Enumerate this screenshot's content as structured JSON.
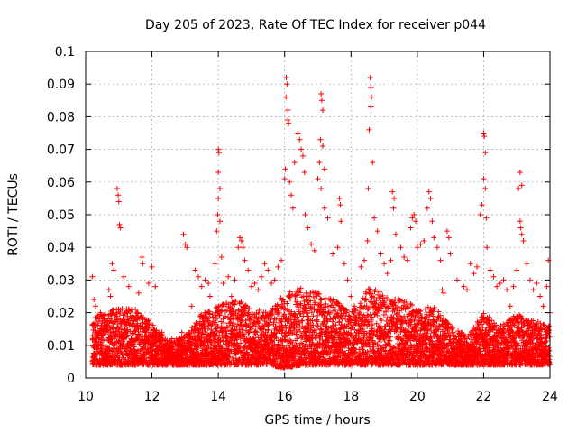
{
  "chart_data": {
    "type": "scatter",
    "title": "Day 205 of 2023, Rate Of TEC Index for receiver p044",
    "xlabel": "GPS time / hours",
    "ylabel": "ROTI / TECUs",
    "xlim": [
      10,
      24
    ],
    "ylim": [
      0,
      0.1
    ],
    "xticks": [
      10,
      12,
      14,
      16,
      18,
      20,
      22,
      24
    ],
    "yticks": [
      0,
      0.01,
      0.02,
      0.03,
      0.04,
      0.05,
      0.06,
      0.07,
      0.08,
      0.09,
      0.1
    ],
    "xtick_labels": [
      "10",
      "12",
      "14",
      "16",
      "18",
      "20",
      "22",
      "24"
    ],
    "ytick_labels": [
      "0",
      "0.01",
      "0.02",
      "0.03",
      "0.04",
      "0.05",
      "0.06",
      "0.07",
      "0.08",
      "0.09",
      "0.1"
    ],
    "grid": true,
    "marker": "plus",
    "color": "#ff0000",
    "legend": "none",
    "series": [
      {
        "points": [
          [
            10.2,
            0.031
          ],
          [
            10.25,
            0.024
          ],
          [
            10.3,
            0.022
          ],
          [
            10.35,
            0.018
          ],
          [
            10.45,
            0.02
          ],
          [
            10.55,
            0.016
          ],
          [
            10.7,
            0.027
          ],
          [
            10.75,
            0.025
          ],
          [
            10.8,
            0.035
          ],
          [
            10.85,
            0.033
          ],
          [
            10.95,
            0.058
          ],
          [
            10.98,
            0.056
          ],
          [
            11.0,
            0.054
          ],
          [
            11.02,
            0.047
          ],
          [
            11.05,
            0.046
          ],
          [
            11.15,
            0.031
          ],
          [
            11.3,
            0.028
          ],
          [
            11.5,
            0.021
          ],
          [
            11.6,
            0.026
          ],
          [
            11.7,
            0.037
          ],
          [
            11.72,
            0.035
          ],
          [
            11.9,
            0.029
          ],
          [
            12.0,
            0.034
          ],
          [
            12.1,
            0.028
          ],
          [
            12.3,
            0.014
          ],
          [
            12.6,
            0.012
          ],
          [
            12.9,
            0.014
          ],
          [
            12.95,
            0.044
          ],
          [
            13.0,
            0.041
          ],
          [
            13.05,
            0.04
          ],
          [
            13.2,
            0.022
          ],
          [
            13.3,
            0.033
          ],
          [
            13.4,
            0.031
          ],
          [
            13.5,
            0.028
          ],
          [
            13.6,
            0.03
          ],
          [
            13.7,
            0.029
          ],
          [
            13.75,
            0.025
          ],
          [
            13.9,
            0.035
          ],
          [
            13.95,
            0.045
          ],
          [
            14.0,
            0.07
          ],
          [
            14.02,
            0.069
          ],
          [
            14.0,
            0.063
          ],
          [
            14.05,
            0.058
          ],
          [
            14.0,
            0.055
          ],
          [
            13.98,
            0.05
          ],
          [
            14.05,
            0.048
          ],
          [
            14.1,
            0.037
          ],
          [
            14.15,
            0.029
          ],
          [
            14.3,
            0.031
          ],
          [
            14.4,
            0.025
          ],
          [
            14.5,
            0.03
          ],
          [
            14.6,
            0.04
          ],
          [
            14.65,
            0.043
          ],
          [
            14.7,
            0.042
          ],
          [
            14.75,
            0.04
          ],
          [
            14.8,
            0.036
          ],
          [
            14.9,
            0.033
          ],
          [
            15.0,
            0.028
          ],
          [
            15.1,
            0.029
          ],
          [
            15.2,
            0.027
          ],
          [
            15.3,
            0.031
          ],
          [
            15.4,
            0.035
          ],
          [
            15.5,
            0.033
          ],
          [
            15.6,
            0.029
          ],
          [
            15.7,
            0.03
          ],
          [
            15.8,
            0.034
          ],
          [
            15.9,
            0.036
          ],
          [
            16.0,
            0.061
          ],
          [
            16.02,
            0.064
          ],
          [
            16.05,
            0.092
          ],
          [
            16.07,
            0.09
          ],
          [
            16.04,
            0.086
          ],
          [
            16.1,
            0.082
          ],
          [
            16.1,
            0.079
          ],
          [
            16.12,
            0.078
          ],
          [
            16.15,
            0.06
          ],
          [
            16.2,
            0.056
          ],
          [
            16.25,
            0.052
          ],
          [
            16.3,
            0.066
          ],
          [
            16.4,
            0.075
          ],
          [
            16.45,
            0.073
          ],
          [
            16.5,
            0.07
          ],
          [
            16.55,
            0.068
          ],
          [
            16.6,
            0.063
          ],
          [
            16.62,
            0.05
          ],
          [
            16.7,
            0.046
          ],
          [
            16.8,
            0.041
          ],
          [
            16.9,
            0.039
          ],
          [
            17.0,
            0.061
          ],
          [
            17.05,
            0.066
          ],
          [
            17.1,
            0.087
          ],
          [
            17.12,
            0.085
          ],
          [
            17.15,
            0.082
          ],
          [
            17.08,
            0.073
          ],
          [
            17.15,
            0.071
          ],
          [
            17.2,
            0.064
          ],
          [
            17.1,
            0.058
          ],
          [
            17.2,
            0.052
          ],
          [
            17.3,
            0.049
          ],
          [
            17.45,
            0.038
          ],
          [
            17.6,
            0.04
          ],
          [
            17.65,
            0.055
          ],
          [
            17.68,
            0.053
          ],
          [
            17.7,
            0.048
          ],
          [
            17.8,
            0.035
          ],
          [
            17.9,
            0.03
          ],
          [
            18.0,
            0.025
          ],
          [
            18.1,
            0.022
          ],
          [
            18.3,
            0.034
          ],
          [
            18.4,
            0.036
          ],
          [
            18.5,
            0.042
          ],
          [
            18.52,
            0.058
          ],
          [
            18.55,
            0.076
          ],
          [
            18.58,
            0.092
          ],
          [
            18.6,
            0.089
          ],
          [
            18.62,
            0.086
          ],
          [
            18.6,
            0.083
          ],
          [
            18.65,
            0.066
          ],
          [
            18.7,
            0.049
          ],
          [
            18.8,
            0.045
          ],
          [
            18.9,
            0.038
          ],
          [
            19.0,
            0.035
          ],
          [
            19.1,
            0.032
          ],
          [
            19.2,
            0.036
          ],
          [
            19.25,
            0.057
          ],
          [
            19.3,
            0.055
          ],
          [
            19.28,
            0.052
          ],
          [
            19.35,
            0.044
          ],
          [
            19.5,
            0.04
          ],
          [
            19.6,
            0.037
          ],
          [
            19.7,
            0.036
          ],
          [
            19.8,
            0.046
          ],
          [
            19.85,
            0.049
          ],
          [
            19.9,
            0.05
          ],
          [
            19.95,
            0.048
          ],
          [
            20.0,
            0.04
          ],
          [
            20.1,
            0.041
          ],
          [
            20.2,
            0.042
          ],
          [
            20.3,
            0.052
          ],
          [
            20.35,
            0.057
          ],
          [
            20.4,
            0.055
          ],
          [
            20.45,
            0.048
          ],
          [
            20.5,
            0.043
          ],
          [
            20.6,
            0.04
          ],
          [
            20.7,
            0.036
          ],
          [
            20.75,
            0.027
          ],
          [
            20.8,
            0.026
          ],
          [
            20.9,
            0.045
          ],
          [
            20.95,
            0.043
          ],
          [
            21.0,
            0.038
          ],
          [
            21.2,
            0.03
          ],
          [
            21.4,
            0.028
          ],
          [
            21.5,
            0.027
          ],
          [
            21.6,
            0.035
          ],
          [
            21.7,
            0.032
          ],
          [
            21.8,
            0.034
          ],
          [
            21.9,
            0.05
          ],
          [
            21.95,
            0.053
          ],
          [
            22.0,
            0.075
          ],
          [
            22.02,
            0.074
          ],
          [
            22.05,
            0.069
          ],
          [
            22.0,
            0.061
          ],
          [
            22.05,
            0.058
          ],
          [
            22.08,
            0.049
          ],
          [
            22.1,
            0.04
          ],
          [
            22.2,
            0.033
          ],
          [
            22.3,
            0.031
          ],
          [
            22.4,
            0.028
          ],
          [
            22.5,
            0.029
          ],
          [
            22.6,
            0.03
          ],
          [
            22.7,
            0.027
          ],
          [
            22.8,
            0.022
          ],
          [
            22.9,
            0.028
          ],
          [
            23.0,
            0.033
          ],
          [
            23.05,
            0.058
          ],
          [
            23.1,
            0.063
          ],
          [
            23.15,
            0.059
          ],
          [
            23.1,
            0.048
          ],
          [
            23.12,
            0.046
          ],
          [
            23.15,
            0.044
          ],
          [
            23.2,
            0.042
          ],
          [
            23.3,
            0.035
          ],
          [
            23.4,
            0.03
          ],
          [
            23.5,
            0.027
          ],
          [
            23.6,
            0.029
          ],
          [
            23.7,
            0.025
          ],
          [
            23.8,
            0.022
          ],
          [
            23.9,
            0.028
          ],
          [
            23.95,
            0.036
          ],
          [
            24.0,
            0.02
          ]
        ],
        "baseline_band": [
          [
            10.2,
            0.004,
            0.018
          ],
          [
            10.5,
            0.004,
            0.02
          ],
          [
            11.0,
            0.004,
            0.022
          ],
          [
            11.5,
            0.004,
            0.021
          ],
          [
            12.0,
            0.004,
            0.017
          ],
          [
            12.5,
            0.004,
            0.011
          ],
          [
            13.0,
            0.004,
            0.013
          ],
          [
            13.5,
            0.004,
            0.02
          ],
          [
            14.0,
            0.004,
            0.022
          ],
          [
            14.5,
            0.004,
            0.024
          ],
          [
            15.0,
            0.004,
            0.022
          ],
          [
            15.5,
            0.004,
            0.02
          ],
          [
            16.0,
            0.003,
            0.026
          ],
          [
            16.5,
            0.004,
            0.028
          ],
          [
            17.0,
            0.004,
            0.026
          ],
          [
            17.5,
            0.004,
            0.024
          ],
          [
            18.0,
            0.004,
            0.02
          ],
          [
            18.5,
            0.004,
            0.028
          ],
          [
            19.0,
            0.004,
            0.026
          ],
          [
            19.5,
            0.004,
            0.024
          ],
          [
            20.0,
            0.004,
            0.022
          ],
          [
            20.5,
            0.004,
            0.022
          ],
          [
            21.0,
            0.004,
            0.016
          ],
          [
            21.5,
            0.004,
            0.013
          ],
          [
            22.0,
            0.004,
            0.02
          ],
          [
            22.5,
            0.004,
            0.016
          ],
          [
            23.0,
            0.004,
            0.02
          ],
          [
            23.5,
            0.004,
            0.018
          ],
          [
            24.0,
            0.004,
            0.016
          ]
        ]
      }
    ]
  }
}
